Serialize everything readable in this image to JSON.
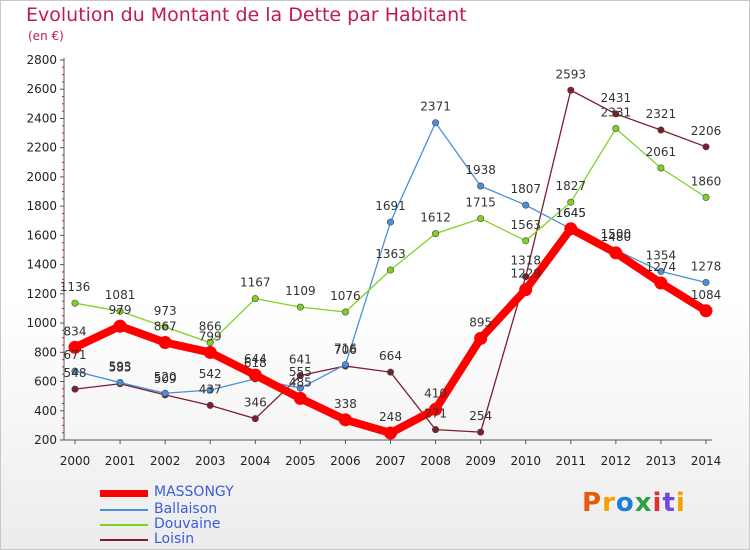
{
  "header": {
    "title": "Evolution du Montant de la Dette par Habitant",
    "unit": "(en €)"
  },
  "logo": {
    "text": "Proxiti",
    "colors": [
      "#e8590c",
      "#f59f00",
      "#1c7ed6",
      "#2f9e44",
      "#e03131",
      "#7048e8",
      "#f59f00"
    ]
  },
  "chart_data": {
    "type": "line",
    "title": "Evolution du Montant de la Dette par Habitant",
    "subtitle": "(en €)",
    "xlabel": "",
    "ylabel": "",
    "x": [
      "2000",
      "2001",
      "2002",
      "2003",
      "2004",
      "2005",
      "2006",
      "2007",
      "2008",
      "2009",
      "2010",
      "2011",
      "2012",
      "2013",
      "2014"
    ],
    "ylim": [
      200,
      2800
    ],
    "yticks": [
      200,
      400,
      600,
      800,
      1000,
      1200,
      1400,
      1600,
      1800,
      2000,
      2200,
      2400,
      2600,
      2800
    ],
    "grid": false,
    "legend_position": "bottom-left",
    "series": [
      {
        "name": "MASSONGY",
        "color": "#ff0000",
        "values": [
          834,
          979,
          867,
          799,
          644,
          485,
          338,
          248,
          410,
          895,
          1229,
          1645,
          1480,
          1274,
          1084
        ],
        "labels": [
          "834",
          "979",
          "867",
          "799",
          "644",
          "485",
          "338",
          "248",
          "410",
          "895",
          "1229",
          "1645",
          "1480",
          "1274",
          "1084"
        ]
      },
      {
        "name": "Ballaison",
        "color": "#4a90d9",
        "values": [
          671,
          593,
          520,
          542,
          618,
          555,
          716,
          1691,
          2371,
          1938,
          1807,
          1645,
          1500,
          1354,
          1278
        ],
        "labels": [
          "671",
          "593",
          "520",
          "542",
          "618",
          "555",
          "716",
          "1691",
          "2371",
          "1938",
          "1807",
          "1645",
          "1500",
          "1354",
          "1278"
        ]
      },
      {
        "name": "Douvaine",
        "color": "#7ed321",
        "values": [
          1136,
          1081,
          973,
          866,
          1167,
          1109,
          1076,
          1363,
          1612,
          1715,
          1563,
          1827,
          2331,
          2061,
          1860
        ],
        "labels": [
          "1136",
          "1081",
          "973",
          "866",
          "1167",
          "1109",
          "1076",
          "1363",
          "1612",
          "1715",
          "1563",
          "1827",
          "2331",
          "2061",
          "1860"
        ]
      },
      {
        "name": "Loisin",
        "color": "#7a1f2b",
        "values": [
          548,
          585,
          509,
          437,
          346,
          641,
          706,
          664,
          271,
          254,
          1318,
          2593,
          2431,
          2321,
          2206
        ],
        "labels": [
          "548",
          "585",
          "509",
          "437",
          "346",
          "641",
          "706",
          "664",
          "271",
          "254",
          "1318",
          "2593",
          "2431",
          "2321",
          "2206"
        ]
      }
    ]
  }
}
